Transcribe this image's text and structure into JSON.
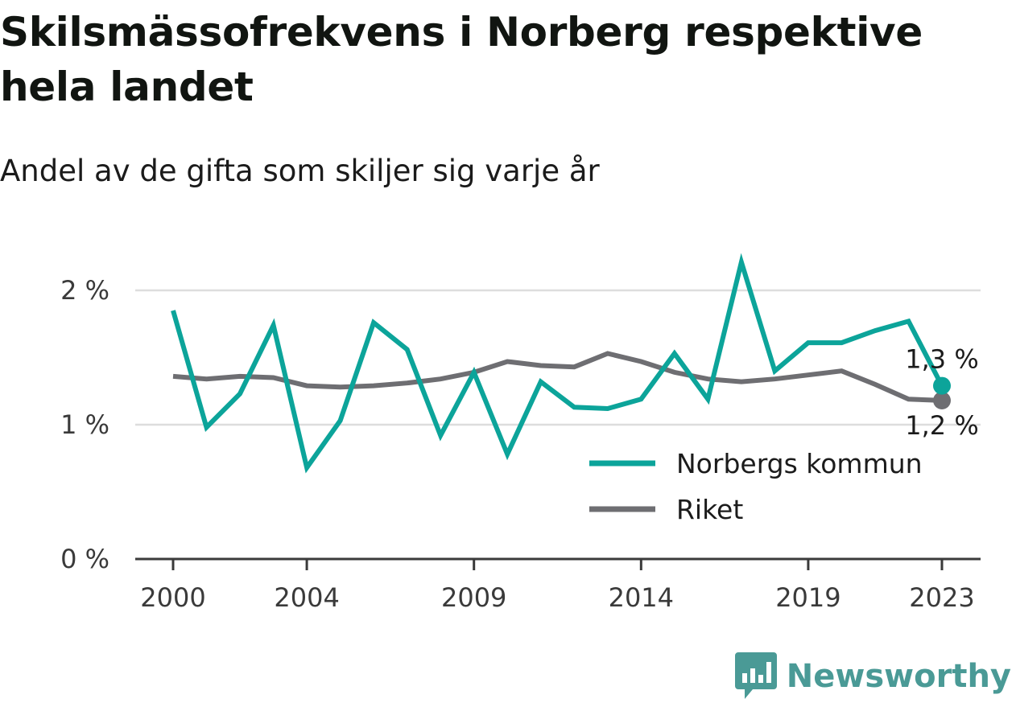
{
  "title": "Skilsmässofrekvens i Norberg respektive hela landet",
  "subtitle": "Andel av de gifta som skiljer sig varje år",
  "brand": {
    "name": "Newsworthy",
    "color": "#4a9a96",
    "icon": "newsworthy-logo-icon"
  },
  "colors": {
    "norberg": "#0ca49a",
    "riket": "#6e6e72",
    "grid": "#dddddd",
    "axis": "#3a3a3a"
  },
  "chart_data": {
    "type": "line",
    "x": [
      2000,
      2001,
      2002,
      2003,
      2004,
      2005,
      2006,
      2007,
      2008,
      2009,
      2010,
      2011,
      2012,
      2013,
      2014,
      2015,
      2016,
      2017,
      2018,
      2019,
      2020,
      2021,
      2022,
      2023
    ],
    "series": [
      {
        "name": "Norbergs kommun",
        "color": "#0ca49a",
        "values": [
          1.85,
          0.98,
          1.23,
          1.74,
          0.68,
          1.03,
          1.76,
          1.56,
          0.92,
          1.39,
          0.78,
          1.32,
          1.13,
          1.12,
          1.19,
          1.53,
          1.19,
          2.21,
          1.4,
          1.61,
          1.61,
          1.7,
          1.77,
          1.29
        ]
      },
      {
        "name": "Riket",
        "color": "#6e6e72",
        "values": [
          1.36,
          1.34,
          1.36,
          1.35,
          1.29,
          1.28,
          1.29,
          1.31,
          1.34,
          1.39,
          1.47,
          1.44,
          1.43,
          1.53,
          1.47,
          1.39,
          1.34,
          1.32,
          1.34,
          1.37,
          1.4,
          1.3,
          1.19,
          1.18
        ]
      }
    ],
    "end_labels": [
      "1,3 %",
      "1,2 %"
    ],
    "y_ticks": [
      0,
      1,
      2
    ],
    "y_tick_labels": [
      "0 %",
      "1 %",
      "2 %"
    ],
    "x_ticks": [
      2000,
      2004,
      2009,
      2014,
      2019,
      2023
    ],
    "x_tick_labels": [
      "2000",
      "2004",
      "2009",
      "2014",
      "2019",
      "2023"
    ],
    "ylim": [
      0,
      2.25
    ],
    "xlim": [
      2000,
      2023
    ],
    "grid": true,
    "legend_position": "bottom-right"
  }
}
